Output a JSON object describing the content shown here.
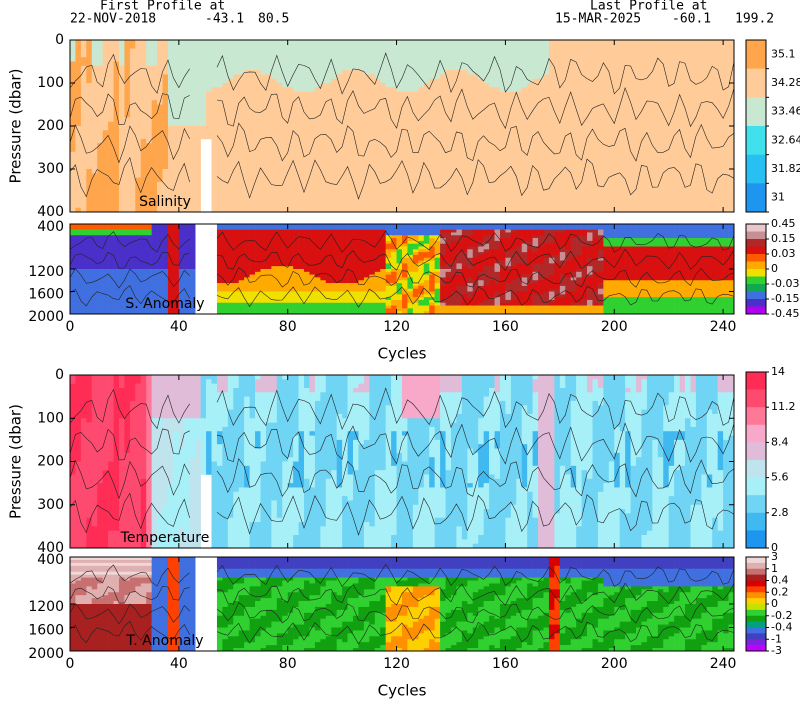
{
  "header": {
    "first_profile_label": "First Profile at",
    "first_date": "22-NOV-2018",
    "first_lat": -43.1,
    "first_lon": 80.5,
    "last_profile_label": "Last Profile at",
    "last_date": "15-MAR-2025",
    "last_lat": -60.1,
    "last_lon": 199.2
  },
  "chart_data": [
    {
      "type": "contour",
      "label": "Salinity",
      "y_label": "Pressure (dbar)",
      "xlim": [
        0,
        244
      ],
      "xticks": [
        0,
        40,
        80,
        120,
        160,
        200,
        240
      ],
      "ylim": [
        400,
        0
      ],
      "yticks": [
        0,
        100,
        200,
        300,
        400
      ],
      "colorbar": {
        "colors": [
          "#ffa64d",
          "#ffcc99",
          "#c8e8d2",
          "#40e0ec",
          "#28bff2",
          "#1e96f0"
        ],
        "labels": [
          35.1,
          34.28,
          33.46,
          32.64,
          31.82,
          31
        ]
      }
    },
    {
      "type": "contour",
      "label": "S. Anomaly",
      "x_label": "Cycles",
      "xlim": [
        0,
        244
      ],
      "xticks": [
        0,
        40,
        80,
        120,
        160,
        200,
        240
      ],
      "ylim": [
        2000,
        400
      ],
      "yticks": [
        400,
        1200,
        1600,
        2000
      ],
      "colorbar": {
        "colors": [
          "#e8c8cc",
          "#c89094",
          "#b02828",
          "#d81010",
          "#ff5a00",
          "#ffaa00",
          "#f0e000",
          "#30d030",
          "#10a850",
          "#4070e0",
          "#4a30c8",
          "#b000f0"
        ],
        "labels": [
          0.45,
          0.15,
          0.03,
          0,
          -0.03,
          -0.15,
          -0.45
        ]
      }
    },
    {
      "type": "contour",
      "label": "Temperature",
      "y_label": "Pressure (dbar)",
      "xlim": [
        0,
        244
      ],
      "xticks": [
        0,
        40,
        80,
        120,
        160,
        200,
        240
      ],
      "ylim": [
        400,
        0
      ],
      "yticks": [
        0,
        100,
        200,
        300,
        400
      ],
      "colorbar": {
        "colors": [
          "#ff2d55",
          "#ff4a70",
          "#ff7898",
          "#f8a8c8",
          "#e0bcd8",
          "#c0e4ee",
          "#a8f0f8",
          "#70d4f4",
          "#40b8f0",
          "#1e96f0"
        ],
        "labels": [
          14,
          11.2,
          8.4,
          5.6,
          2.8,
          0
        ]
      }
    },
    {
      "type": "contour",
      "label": "T. Anomaly",
      "x_label": "Cycles",
      "xlim": [
        0,
        244
      ],
      "xticks": [
        0,
        40,
        80,
        120,
        160,
        200,
        240
      ],
      "ylim": [
        2000,
        400
      ],
      "yticks": [
        400,
        1200,
        1600,
        2000
      ],
      "colorbar": {
        "colors": [
          "#f0d8d8",
          "#e0b0b0",
          "#c87070",
          "#a82020",
          "#d80000",
          "#ff4000",
          "#ff9000",
          "#ffd000",
          "#c8e000",
          "#30d030",
          "#10a010",
          "#00a080",
          "#4070e0",
          "#4040c0",
          "#8020e0",
          "#c000ff"
        ],
        "labels": [
          3,
          1,
          0.4,
          0.2,
          0,
          -0.2,
          -0.4,
          -1,
          -3
        ]
      }
    }
  ]
}
